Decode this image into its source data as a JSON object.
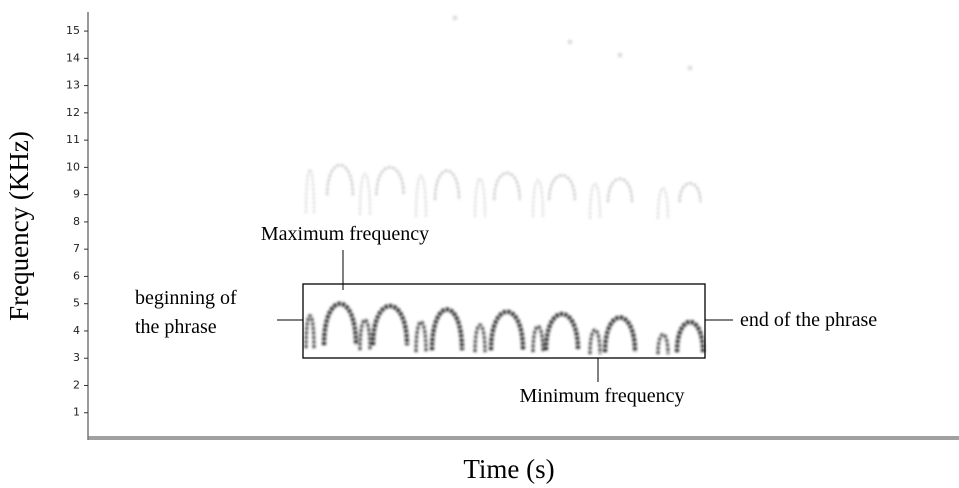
{
  "chart_data": {
    "type": "spectrogram",
    "ylabel": "Frequency (KHz)",
    "xlabel": "Time (s)",
    "ylim": [
      0,
      15.7
    ],
    "yticks": [
      1,
      2,
      3,
      4,
      5,
      6,
      7,
      8,
      9,
      10,
      11,
      12,
      13,
      14,
      15
    ],
    "annotations": [
      "Maximum frequency",
      "beginning of",
      "the phrase",
      "end of the phrase",
      "Minimum frequency"
    ]
  }
}
